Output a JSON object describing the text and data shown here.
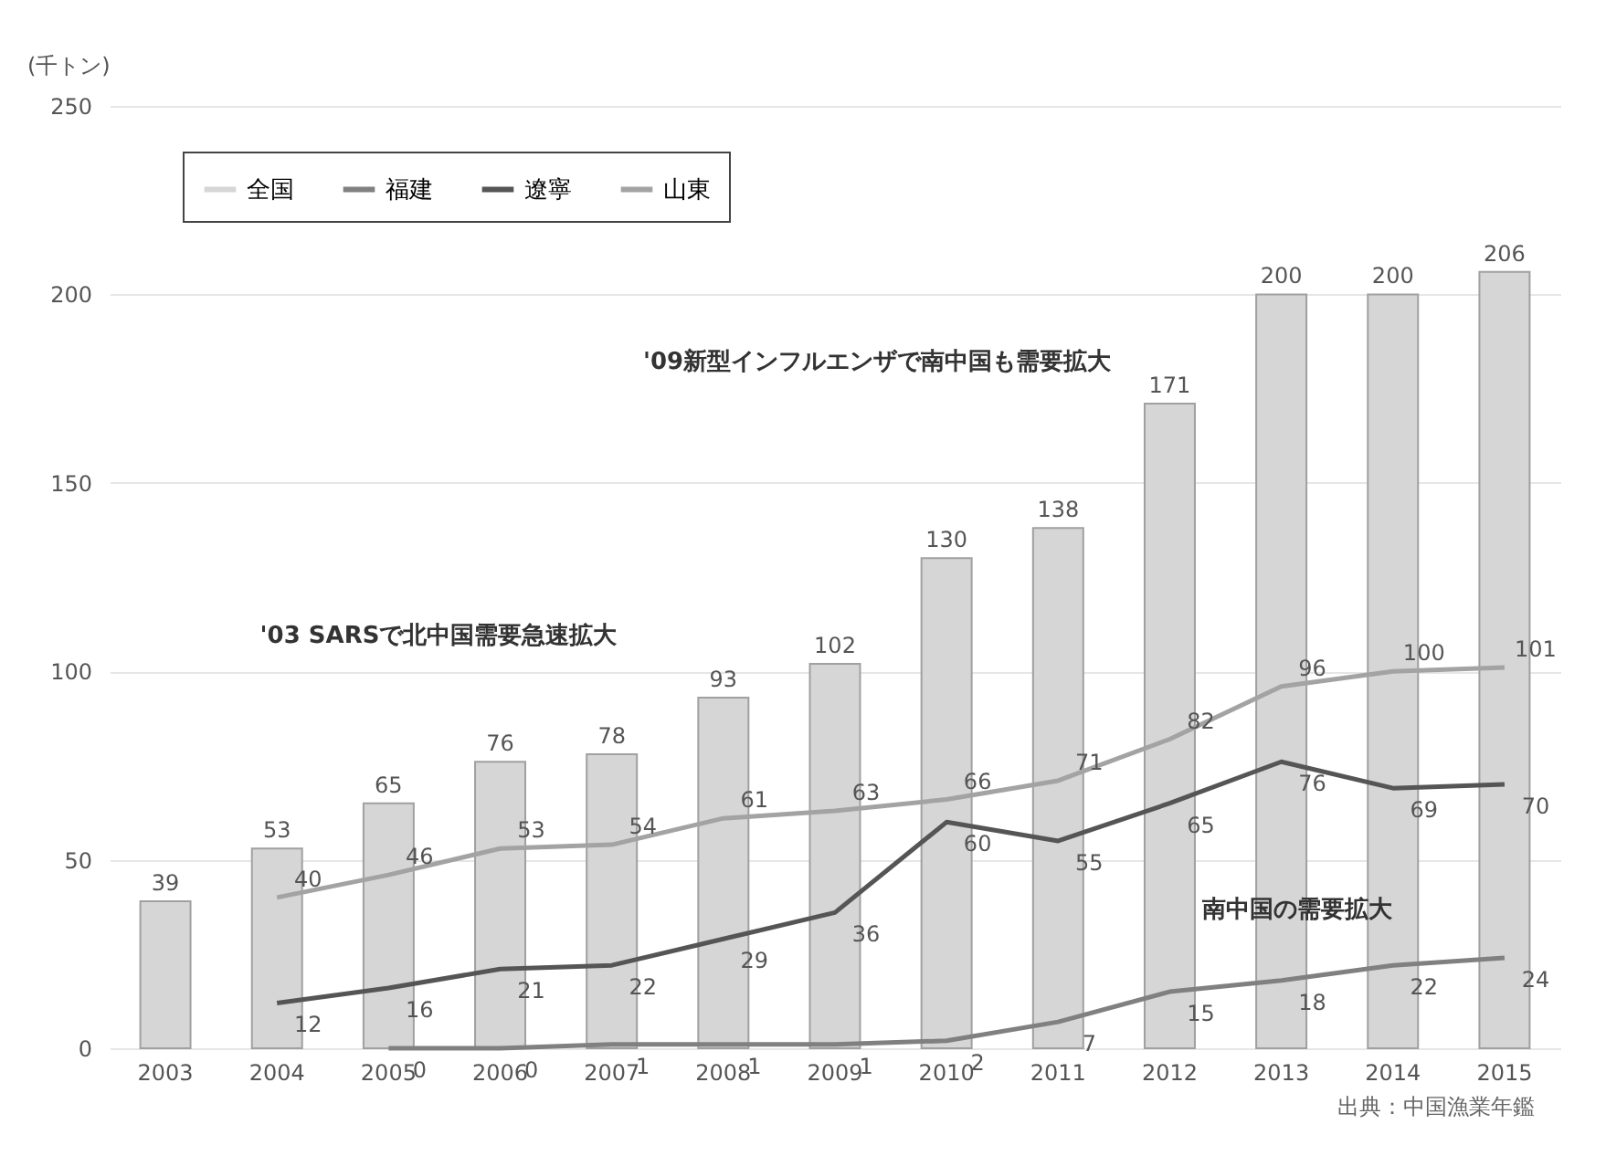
{
  "chart_data": {
    "type": "bar",
    "ylabel": "(千トン)",
    "categories": [
      "2003",
      "2004",
      "2005",
      "2006",
      "2007",
      "2008",
      "2009",
      "2010",
      "2011",
      "2012",
      "2013",
      "2014",
      "2015"
    ],
    "series": [
      {
        "name": "全国",
        "type": "bar",
        "color": "#d6d6d6",
        "values": [
          39,
          53,
          65,
          76,
          78,
          93,
          102,
          130,
          138,
          171,
          200,
          200,
          206
        ]
      },
      {
        "name": "福建",
        "type": "line",
        "color": "#808080",
        "values": [
          null,
          null,
          0,
          0,
          1,
          1,
          1,
          2,
          7,
          15,
          18,
          22,
          24
        ]
      },
      {
        "name": "遼寧",
        "type": "line",
        "color": "#555555",
        "values": [
          null,
          12,
          16,
          21,
          22,
          29,
          36,
          60,
          55,
          65,
          76,
          69,
          70
        ]
      },
      {
        "name": "山東",
        "type": "line",
        "color": "#a3a3a3",
        "values": [
          null,
          40,
          46,
          53,
          54,
          61,
          63,
          66,
          71,
          82,
          96,
          100,
          101
        ]
      }
    ],
    "ylim": [
      0,
      250
    ],
    "yticks": [
      0,
      50,
      100,
      150,
      200,
      250
    ],
    "grid": "y",
    "legend": "top left",
    "data_labels": true,
    "annotations": [
      "'03 SARSで北中国需要急速拡大",
      "'09新型インフルエンザで南中国も需要拡大",
      "南中国の需要拡大",
      "出典：中国漁業年鑑"
    ]
  }
}
